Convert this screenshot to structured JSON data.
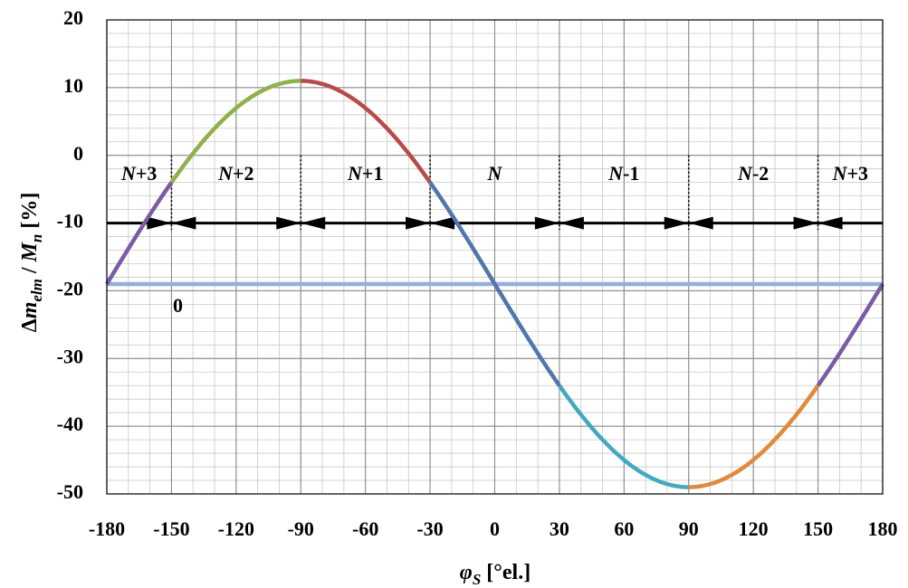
{
  "chart_data": {
    "type": "line",
    "xlabel": "φS [°el.]",
    "ylabel": "Δmelm / Mn [%]",
    "xlim": [
      -180,
      180
    ],
    "ylim": [
      -50,
      20
    ],
    "x_ticks": [
      -180,
      -150,
      -120,
      -90,
      -60,
      -30,
      0,
      30,
      60,
      90,
      120,
      150,
      180
    ],
    "y_ticks": [
      20,
      10,
      0,
      -10,
      -20,
      -30,
      -40,
      -50
    ],
    "x_minor_step": 10,
    "y_minor_step": 2,
    "grid": true,
    "curve": {
      "description_formula": "y = offset + amplitude * sin(-x)",
      "offset": -19,
      "amplitude": 30,
      "segments": [
        {
          "x_from": -180,
          "x_to": -150,
          "color": "#7b5aa6"
        },
        {
          "x_from": -150,
          "x_to": -90,
          "color": "#8fb04a"
        },
        {
          "x_from": -90,
          "x_to": -30,
          "color": "#b84a4a"
        },
        {
          "x_from": -30,
          "x_to": 30,
          "color": "#4f77ac"
        },
        {
          "x_from": 30,
          "x_to": 90,
          "color": "#45a7c0"
        },
        {
          "x_from": 90,
          "x_to": 150,
          "color": "#e08a3c"
        },
        {
          "x_from": 150,
          "x_to": 180,
          "color": "#7b5aa6"
        }
      ]
    },
    "baseline": {
      "label": "0",
      "y": -19,
      "color": "#96aedc",
      "label_x": -147,
      "label_y": -22.5
    },
    "arrow_line": {
      "y": -10,
      "color": "#000000",
      "boundaries": [
        -150,
        -90,
        -30,
        30,
        90,
        150
      ]
    },
    "sector_dividers": [
      -150,
      -90,
      -30,
      30,
      90,
      150
    ],
    "sectors": [
      {
        "label_n": "N",
        "label_suffix": "+3",
        "x": -165
      },
      {
        "label_n": "N",
        "label_suffix": "+2",
        "x": -120
      },
      {
        "label_n": "N",
        "label_suffix": "+1",
        "x": -60
      },
      {
        "label_n": "N",
        "label_suffix": "",
        "x": 0
      },
      {
        "label_n": "N",
        "label_suffix": "-1",
        "x": 60
      },
      {
        "label_n": "N",
        "label_suffix": "-2",
        "x": 120
      },
      {
        "label_n": "N",
        "label_suffix": "+3",
        "x": 165
      }
    ],
    "sector_label_y": -3
  }
}
